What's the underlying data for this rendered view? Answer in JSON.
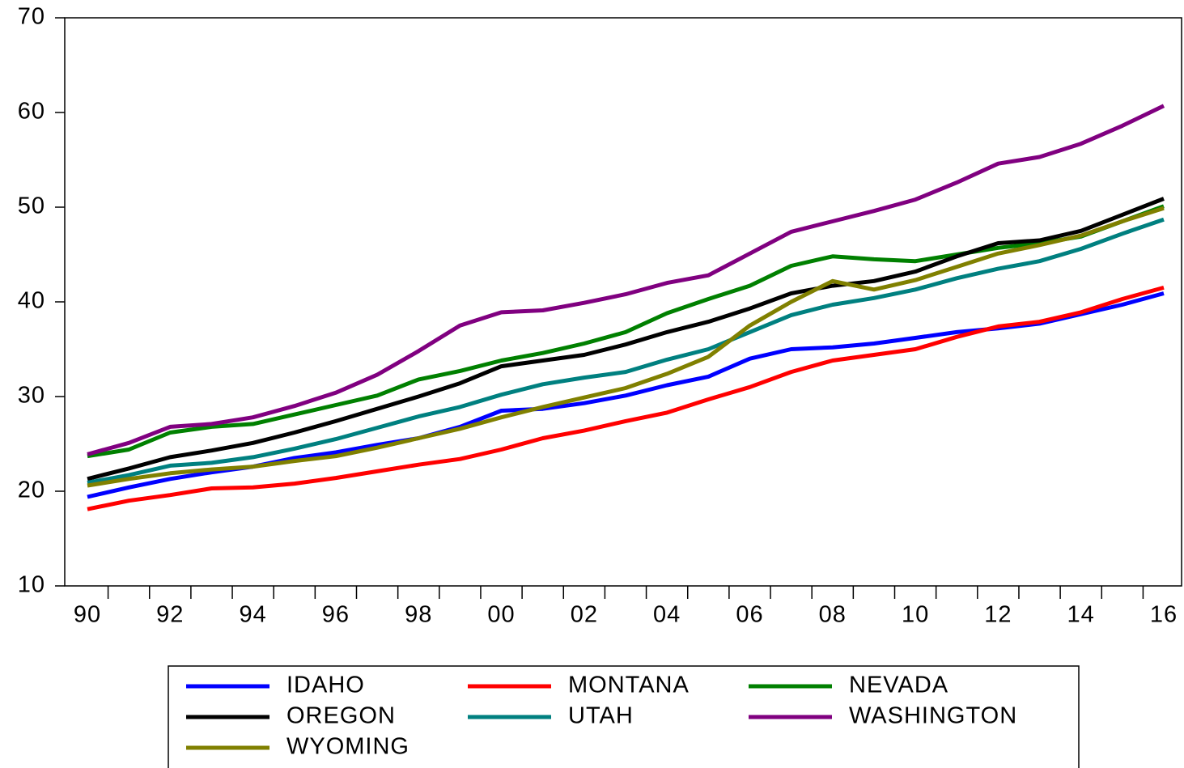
{
  "chart_data": {
    "type": "line",
    "categories": [
      "90",
      null,
      "92",
      null,
      "94",
      null,
      "96",
      null,
      "98",
      null,
      "00",
      null,
      "02",
      null,
      "04",
      null,
      "06",
      null,
      "08",
      null,
      "10",
      null,
      "12",
      null,
      "14",
      null,
      "16"
    ],
    "ylim": [
      10,
      70
    ],
    "yticks": [
      10,
      20,
      30,
      40,
      50,
      60,
      70
    ],
    "legend": "bottom",
    "series": [
      {
        "name": "IDAHO",
        "color": "#0000ff",
        "values": [
          19.4,
          20.4,
          21.3,
          22.0,
          22.6,
          23.5,
          24.1,
          24.9,
          25.6,
          26.8,
          28.5,
          28.7,
          29.3,
          30.1,
          31.2,
          32.1,
          34.0,
          35.0,
          35.2,
          35.6,
          36.2,
          36.8,
          37.2,
          37.7,
          38.7,
          39.7,
          40.9
        ]
      },
      {
        "name": "MONTANA",
        "color": "#ff0000",
        "values": [
          18.1,
          19.0,
          19.6,
          20.3,
          20.4,
          20.8,
          21.4,
          22.1,
          22.8,
          23.4,
          24.4,
          25.6,
          26.4,
          27.4,
          28.3,
          29.7,
          31.0,
          32.6,
          33.8,
          34.4,
          35.0,
          36.3,
          37.4,
          37.9,
          38.9,
          40.3,
          41.5
        ]
      },
      {
        "name": "NEVADA",
        "color": "#008000",
        "values": [
          23.7,
          24.4,
          26.2,
          26.8,
          27.1,
          28.1,
          29.1,
          30.1,
          31.8,
          32.7,
          33.8,
          34.6,
          35.6,
          36.8,
          38.8,
          40.3,
          41.7,
          43.8,
          44.8,
          44.5,
          44.3,
          45.0,
          45.7,
          46.2,
          46.9,
          48.5,
          50.1
        ]
      },
      {
        "name": "OREGON",
        "color": "#000000",
        "values": [
          21.3,
          22.4,
          23.6,
          24.3,
          25.1,
          26.2,
          27.4,
          28.7,
          30.0,
          31.4,
          33.2,
          33.8,
          34.4,
          35.5,
          36.8,
          37.9,
          39.3,
          40.9,
          41.7,
          42.2,
          43.2,
          44.8,
          46.2,
          46.5,
          47.5,
          49.2,
          50.9
        ]
      },
      {
        "name": "UTAH",
        "color": "#008080",
        "values": [
          20.9,
          21.7,
          22.7,
          23.0,
          23.6,
          24.5,
          25.5,
          26.7,
          27.9,
          28.9,
          30.2,
          31.3,
          32.0,
          32.6,
          33.9,
          35.0,
          36.8,
          38.6,
          39.7,
          40.4,
          41.3,
          42.5,
          43.5,
          44.3,
          45.6,
          47.2,
          48.7
        ]
      },
      {
        "name": "WASHINGTON",
        "color": "#800080",
        "values": [
          23.9,
          25.1,
          26.8,
          27.1,
          27.8,
          29.0,
          30.4,
          32.3,
          34.8,
          37.5,
          38.9,
          39.1,
          39.9,
          40.8,
          42.0,
          42.8,
          45.1,
          47.4,
          48.5,
          49.6,
          50.8,
          52.6,
          54.6,
          55.3,
          56.7,
          58.6,
          60.7
        ]
      },
      {
        "name": "WYOMING",
        "color": "#808000",
        "values": [
          20.6,
          21.3,
          21.9,
          22.3,
          22.6,
          23.2,
          23.7,
          24.6,
          25.6,
          26.6,
          27.8,
          28.9,
          29.9,
          30.9,
          32.4,
          34.2,
          37.5,
          40.0,
          42.2,
          41.3,
          42.3,
          43.7,
          45.1,
          46.0,
          47.0,
          48.5,
          49.9
        ]
      }
    ]
  }
}
